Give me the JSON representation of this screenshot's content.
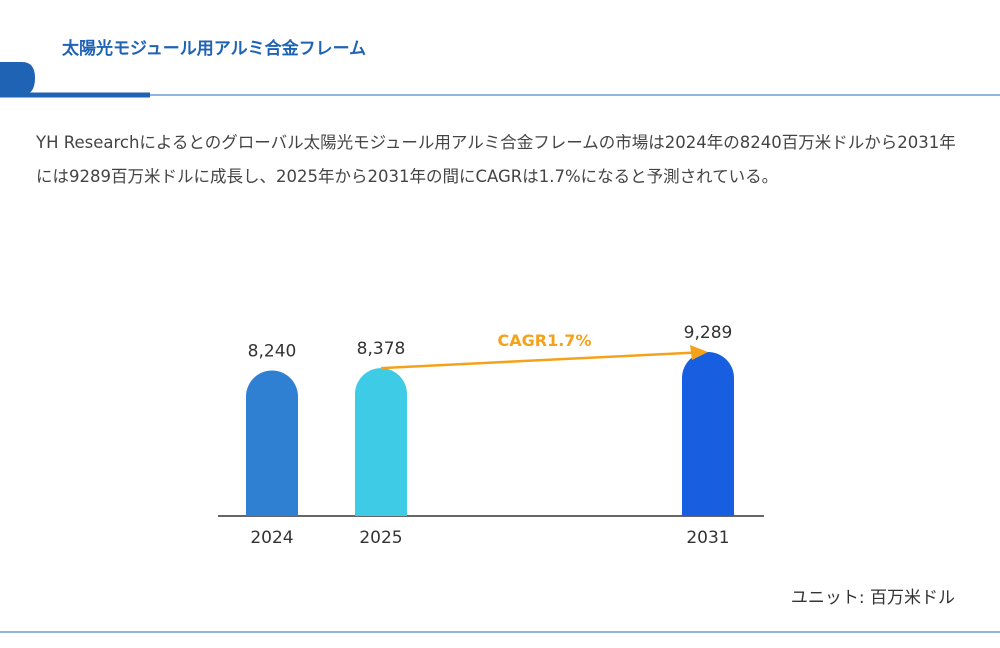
{
  "header": {
    "title": "太陽光モジュール用アルミ合金フレーム"
  },
  "description": "YH Researchによるとのグローバル太陽光モジュール用アルミ合金フレームの市場は2024年の8240百万米ドルから2031年には9289百万米ドルに成長し、2025年から2031年の間にCAGRは1.7%になると予測されている。",
  "chart_data": {
    "type": "bar",
    "categories": [
      "2024",
      "2025",
      "2031"
    ],
    "values": [
      8240,
      8378,
      9289
    ],
    "value_labels": [
      "8,240",
      "8,378",
      "9,289"
    ],
    "colors": [
      "#2f80d2",
      "#3ecbe6",
      "#175fe0"
    ],
    "annotation": "CAGR1.7%",
    "annotation_color": "#f5a21b",
    "unit_label": "ユニット: 百万米ドル"
  }
}
